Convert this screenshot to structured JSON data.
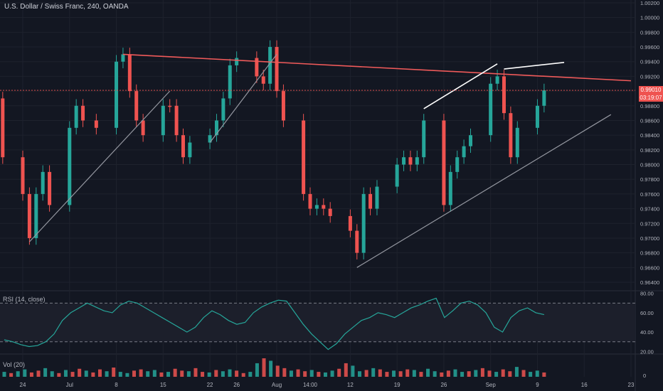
{
  "header": {
    "title": "U.S. Dollar / Swiss Franc, 240, OANDA"
  },
  "panes": {
    "rsi_label": "RSI (14, close)",
    "vol_label": "Vol (20)"
  },
  "current_price": {
    "price": "0.99010",
    "countdown": "03:19:07"
  },
  "colors": {
    "background": "#131722",
    "up": "#26a69a",
    "down": "#ef5350",
    "grid": "#1e222d",
    "axis_text": "#b2b5be",
    "resistance_line": "#f05a5a",
    "support_line": "#9598a1",
    "highlight_line": "#ffffff",
    "rsi_line": "#26a69a"
  },
  "chart_data": [
    {
      "type": "candlestick",
      "series": [
        {
          "x": "Jun 18",
          "y": 0.998,
          "color": "#ef5350"
        },
        {
          "x": "Jun 19",
          "y": 0.989,
          "color": "#ef5350"
        },
        {
          "x": "Jun 21",
          "y": 0.981,
          "color": "#ef5350"
        },
        {
          "x": "Jun 24",
          "y": 0.976,
          "color": "#ef5350"
        },
        {
          "x": "Jun 25",
          "y": 0.97,
          "color": "#ef5350"
        },
        {
          "x": "Jun 26",
          "y": 0.976,
          "color": "#26a69a"
        },
        {
          "x": "Jun 27",
          "y": 0.979,
          "color": "#26a69a"
        },
        {
          "x": "Jun 28",
          "y": 0.9745,
          "color": "#ef5350"
        },
        {
          "x": "Jul 1",
          "y": 0.985,
          "color": "#26a69a"
        },
        {
          "x": "Jul 2",
          "y": 0.988,
          "color": "#26a69a"
        },
        {
          "x": "Jul 3",
          "y": 0.986,
          "color": "#ef5350"
        },
        {
          "x": "Jul 5",
          "y": 0.985,
          "color": "#ef5350"
        },
        {
          "x": "Jul 8",
          "y": 0.994,
          "color": "#26a69a"
        },
        {
          "x": "Jul 9",
          "y": 0.995,
          "color": "#26a69a"
        },
        {
          "x": "Jul 10",
          "y": 0.99,
          "color": "#ef5350"
        },
        {
          "x": "Jul 11",
          "y": 0.986,
          "color": "#ef5350"
        },
        {
          "x": "Jul 12",
          "y": 0.984,
          "color": "#ef5350"
        },
        {
          "x": "Jul 15",
          "y": 0.988,
          "color": "#26a69a"
        },
        {
          "x": "Jul 16",
          "y": 0.988,
          "color": "#ef5350"
        },
        {
          "x": "Jul 17",
          "y": 0.984,
          "color": "#ef5350"
        },
        {
          "x": "Jul 18",
          "y": 0.981,
          "color": "#ef5350"
        },
        {
          "x": "Jul 19",
          "y": 0.983,
          "color": "#26a69a"
        },
        {
          "x": "Jul 22",
          "y": 0.984,
          "color": "#26a69a"
        },
        {
          "x": "Jul 23",
          "y": 0.986,
          "color": "#26a69a"
        },
        {
          "x": "Jul 24",
          "y": 0.989,
          "color": "#26a69a"
        },
        {
          "x": "Jul 25",
          "y": 0.9935,
          "color": "#26a69a"
        },
        {
          "x": "Jul 26",
          "y": 0.9945,
          "color": "#26a69a"
        },
        {
          "x": "Jul 29",
          "y": 0.992,
          "color": "#ef5350"
        },
        {
          "x": "Jul 30",
          "y": 0.991,
          "color": "#ef5350"
        },
        {
          "x": "Jul 31",
          "y": 0.996,
          "color": "#26a69a"
        },
        {
          "x": "Aug 1",
          "y": 0.99,
          "color": "#ef5350"
        },
        {
          "x": "Aug 2",
          "y": 0.986,
          "color": "#ef5350"
        },
        {
          "x": "Aug 5",
          "y": 0.976,
          "color": "#ef5350"
        },
        {
          "x": "Aug 6",
          "y": 0.974,
          "color": "#ef5350"
        },
        {
          "x": "Aug 7",
          "y": 0.9745,
          "color": "#26a69a"
        },
        {
          "x": "Aug 8",
          "y": 0.974,
          "color": "#ef5350"
        },
        {
          "x": "Aug 9",
          "y": 0.973,
          "color": "#ef5350"
        },
        {
          "x": "Aug 12",
          "y": 0.971,
          "color": "#ef5350"
        },
        {
          "x": "Aug 13",
          "y": 0.968,
          "color": "#ef5350"
        },
        {
          "x": "Aug 14",
          "y": 0.976,
          "color": "#26a69a"
        },
        {
          "x": "Aug 15",
          "y": 0.974,
          "color": "#ef5350"
        },
        {
          "x": "Aug 16",
          "y": 0.977,
          "color": "#26a69a"
        },
        {
          "x": "Aug 19",
          "y": 0.98,
          "color": "#26a69a"
        },
        {
          "x": "Aug 20",
          "y": 0.981,
          "color": "#26a69a"
        },
        {
          "x": "Aug 21",
          "y": 0.98,
          "color": "#ef5350"
        },
        {
          "x": "Aug 22",
          "y": 0.981,
          "color": "#26a69a"
        },
        {
          "x": "Aug 23",
          "y": 0.986,
          "color": "#26a69a"
        },
        {
          "x": "Aug 26",
          "y": 0.9745,
          "color": "#ef5350"
        },
        {
          "x": "Aug 27",
          "y": 0.979,
          "color": "#26a69a"
        },
        {
          "x": "Aug 28",
          "y": 0.981,
          "color": "#26a69a"
        },
        {
          "x": "Aug 29",
          "y": 0.9825,
          "color": "#26a69a"
        },
        {
          "x": "Aug 30",
          "y": 0.984,
          "color": "#26a69a"
        },
        {
          "x": "Sep 2",
          "y": 0.991,
          "color": "#26a69a"
        },
        {
          "x": "Sep 3",
          "y": 0.992,
          "color": "#26a69a"
        },
        {
          "x": "Sep 4",
          "y": 0.987,
          "color": "#ef5350"
        },
        {
          "x": "Sep 5",
          "y": 0.981,
          "color": "#ef5350"
        },
        {
          "x": "Sep 6",
          "y": 0.985,
          "color": "#26a69a"
        },
        {
          "x": "Sep 9",
          "y": 0.988,
          "color": "#26a69a"
        },
        {
          "x": "Sep 10",
          "y": 0.9901,
          "color": "#26a69a"
        }
      ],
      "yticks": [
        "1.00200",
        "1.00000",
        "0.99800",
        "0.99600",
        "0.99400",
        "0.99200",
        "0.99000",
        "0.98800",
        "0.98600",
        "0.98400",
        "0.98200",
        "0.98000",
        "0.97800",
        "0.97600",
        "0.97400",
        "0.97200",
        "0.97000",
        "0.96800",
        "0.96600",
        "0.96400"
      ],
      "ylim": [
        0.9632,
        1.0027
      ],
      "trendlines": [
        {
          "name": "resistance",
          "x1": "Jul 9",
          "y1": 0.995,
          "x2": "Sep 23",
          "y2": 0.9914
        },
        {
          "name": "support-1",
          "x1": "Jun 25",
          "y1": 0.9695,
          "x2": "Jul 16",
          "y2": 0.99
        },
        {
          "name": "support-2",
          "x1": "Jul 22",
          "y1": 0.983,
          "x2": "Aug 1",
          "y2": 0.995
        },
        {
          "name": "support-3",
          "x1": "Aug 13",
          "y1": 0.966,
          "x2": "Sep 20",
          "y2": 0.9868
        },
        {
          "name": "higher-high-1",
          "x1": "Aug 23",
          "y1": 0.9876,
          "x2": "Sep 3",
          "y2": 0.9937
        },
        {
          "name": "higher-high-2",
          "x1": "Sep 4",
          "y1": 0.993,
          "x2": "Sep 13",
          "y2": 0.9939
        }
      ]
    },
    {
      "type": "line",
      "name": "RSI (14, close)",
      "yticks": [
        "80.00",
        "60.00",
        "40.00",
        "20.00"
      ],
      "ylim": [
        18,
        82
      ],
      "overbought": 70,
      "oversold": 30,
      "values": [
        32,
        30,
        27,
        25,
        26,
        30,
        38,
        52,
        60,
        65,
        70,
        66,
        62,
        60,
        68,
        72,
        70,
        65,
        60,
        55,
        50,
        45,
        40,
        45,
        55,
        62,
        58,
        52,
        48,
        50,
        60,
        66,
        70,
        73,
        72,
        60,
        48,
        38,
        30,
        22,
        28,
        38,
        45,
        52,
        55,
        60,
        58,
        55,
        60,
        65,
        68,
        72,
        75,
        55,
        62,
        70,
        72,
        68,
        60,
        45,
        40,
        55,
        62,
        65,
        60,
        58
      ]
    },
    {
      "type": "bar",
      "name": "Vol (20)",
      "yticks": [
        "0"
      ],
      "values": [
        8,
        6,
        9,
        12,
        7,
        10,
        14,
        9,
        6,
        11,
        8,
        13,
        10,
        7,
        12,
        9,
        15,
        8,
        6,
        10,
        12,
        9,
        11,
        7,
        8,
        13,
        10,
        9,
        14,
        8,
        7,
        11,
        9,
        12,
        10,
        6,
        8,
        22,
        30,
        26,
        18,
        14,
        10,
        12,
        9,
        11,
        8,
        7,
        10,
        13,
        22,
        18,
        9,
        11,
        14,
        12,
        8,
        10,
        9,
        12,
        11,
        8,
        13,
        9,
        7,
        10,
        12,
        8,
        9,
        11,
        14,
        10,
        8,
        12,
        9,
        16,
        11,
        8,
        10,
        7
      ]
    }
  ],
  "xaxis": {
    "ticks": [
      {
        "label": "24",
        "x": "Jun 24"
      },
      {
        "label": "Jul",
        "x": "Jul 1"
      },
      {
        "label": "8",
        "x": "Jul 8"
      },
      {
        "label": "15",
        "x": "Jul 15"
      },
      {
        "label": "22",
        "x": "Jul 22"
      },
      {
        "label": "26",
        "x": "Jul 26"
      },
      {
        "label": "Aug",
        "x": "Aug 1"
      },
      {
        "label": "14:00",
        "x": "Aug 6"
      },
      {
        "label": "12",
        "x": "Aug 12"
      },
      {
        "label": "19",
        "x": "Aug 19"
      },
      {
        "label": "26",
        "x": "Aug 26"
      },
      {
        "label": "Sep",
        "x": "Sep 2"
      },
      {
        "label": "9",
        "x": "Sep 9"
      },
      {
        "label": "16",
        "x": "Sep 16"
      },
      {
        "label": "23",
        "x": "Sep 23"
      }
    ]
  }
}
